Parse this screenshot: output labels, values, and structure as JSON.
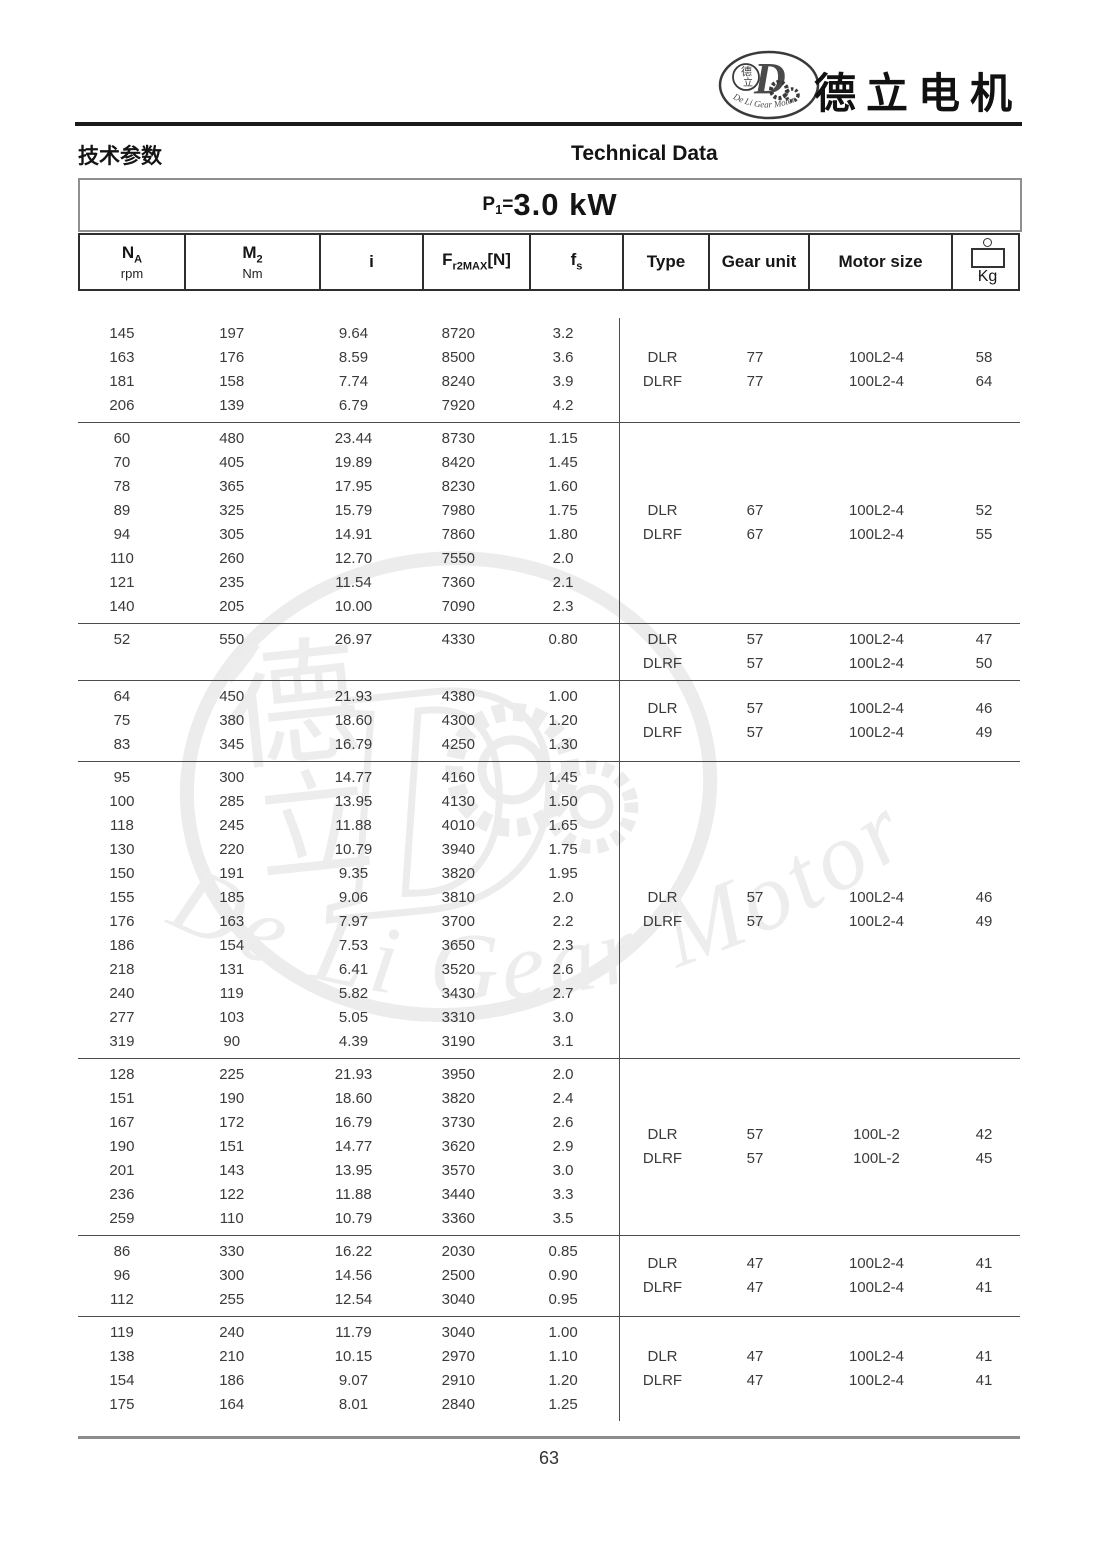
{
  "page": {
    "brand_cn": "德立电机",
    "section_title_cn": "技术参数",
    "section_title_en": "Technical Data",
    "power": {
      "p": "P",
      "sub": "1",
      "eq": "=",
      "value": "3.0 kW"
    },
    "page_number": "63"
  },
  "logo": {
    "letter": "D",
    "char1": "德",
    "char2": "立",
    "script": "De Li Gear Motor"
  },
  "table": {
    "headers": {
      "na": {
        "pre": "N",
        "sub": "A",
        "unit": "rpm"
      },
      "m2": {
        "pre": "M",
        "sub": "2",
        "unit": "Nm"
      },
      "i": {
        "pre": "i"
      },
      "fr": {
        "pre": "F",
        "sub": "r2MAX",
        "post": "[N]"
      },
      "fs": {
        "pre": "f",
        "sub": "s"
      },
      "type": {
        "label": "Type"
      },
      "gear_unit": {
        "label": "Gear unit"
      },
      "motor_size": {
        "label": "Motor size"
      },
      "kg": {
        "unit": "Kg",
        "icon": "weight-icon"
      }
    },
    "groups": [
      {
        "rows": [
          [
            "145",
            "197",
            "9.64",
            "8720",
            "3.2"
          ],
          [
            "163",
            "176",
            "8.59",
            "8500",
            "3.6"
          ],
          [
            "181",
            "158",
            "7.74",
            "8240",
            "3.9"
          ],
          [
            "206",
            "139",
            "6.79",
            "7920",
            "4.2"
          ]
        ],
        "types": [
          [
            "DLR",
            "77",
            "100L2-4",
            "58"
          ],
          [
            "DLRF",
            "77",
            "100L2-4",
            "64"
          ]
        ]
      },
      {
        "rows": [
          [
            "60",
            "480",
            "23.44",
            "8730",
            "1.15"
          ],
          [
            "70",
            "405",
            "19.89",
            "8420",
            "1.45"
          ],
          [
            "78",
            "365",
            "17.95",
            "8230",
            "1.60"
          ],
          [
            "89",
            "325",
            "15.79",
            "7980",
            "1.75"
          ],
          [
            "94",
            "305",
            "14.91",
            "7860",
            "1.80"
          ],
          [
            "110",
            "260",
            "12.70",
            "7550",
            "2.0"
          ],
          [
            "121",
            "235",
            "11.54",
            "7360",
            "2.1"
          ],
          [
            "140",
            "205",
            "10.00",
            "7090",
            "2.3"
          ]
        ],
        "types": [
          [
            "DLR",
            "67",
            "100L2-4",
            "52"
          ],
          [
            "DLRF",
            "67",
            "100L2-4",
            "55"
          ]
        ]
      },
      {
        "rows": [
          [
            "52",
            "550",
            "26.97",
            "4330",
            "0.80"
          ]
        ],
        "types": [
          [
            "DLR",
            "57",
            "100L2-4",
            "47"
          ],
          [
            "DLRF",
            "57",
            "100L2-4",
            "50"
          ]
        ]
      },
      {
        "rows": [
          [
            "64",
            "450",
            "21.93",
            "4380",
            "1.00"
          ],
          [
            "75",
            "380",
            "18.60",
            "4300",
            "1.20"
          ],
          [
            "83",
            "345",
            "16.79",
            "4250",
            "1.30"
          ]
        ],
        "types": [
          [
            "DLR",
            "57",
            "100L2-4",
            "46"
          ],
          [
            "DLRF",
            "57",
            "100L2-4",
            "49"
          ]
        ]
      },
      {
        "rows": [
          [
            "95",
            "300",
            "14.77",
            "4160",
            "1.45"
          ],
          [
            "100",
            "285",
            "13.95",
            "4130",
            "1.50"
          ],
          [
            "118",
            "245",
            "11.88",
            "4010",
            "1.65"
          ],
          [
            "130",
            "220",
            "10.79",
            "3940",
            "1.75"
          ],
          [
            "150",
            "191",
            "9.35",
            "3820",
            "1.95"
          ],
          [
            "155",
            "185",
            "9.06",
            "3810",
            "2.0"
          ],
          [
            "176",
            "163",
            "7.97",
            "3700",
            "2.2"
          ],
          [
            "186",
            "154",
            "7.53",
            "3650",
            "2.3"
          ],
          [
            "218",
            "131",
            "6.41",
            "3520",
            "2.6"
          ],
          [
            "240",
            "119",
            "5.82",
            "3430",
            "2.7"
          ],
          [
            "277",
            "103",
            "5.05",
            "3310",
            "3.0"
          ],
          [
            "319",
            "90",
            "4.39",
            "3190",
            "3.1"
          ]
        ],
        "types": [
          [
            "DLR",
            "57",
            "100L2-4",
            "46"
          ],
          [
            "DLRF",
            "57",
            "100L2-4",
            "49"
          ]
        ]
      },
      {
        "rows": [
          [
            "128",
            "225",
            "21.93",
            "3950",
            "2.0"
          ],
          [
            "151",
            "190",
            "18.60",
            "3820",
            "2.4"
          ],
          [
            "167",
            "172",
            "16.79",
            "3730",
            "2.6"
          ],
          [
            "190",
            "151",
            "14.77",
            "3620",
            "2.9"
          ],
          [
            "201",
            "143",
            "13.95",
            "3570",
            "3.0"
          ],
          [
            "236",
            "122",
            "11.88",
            "3440",
            "3.3"
          ],
          [
            "259",
            "110",
            "10.79",
            "3360",
            "3.5"
          ]
        ],
        "types": [
          [
            "DLR",
            "57",
            "100L-2",
            "42"
          ],
          [
            "DLRF",
            "57",
            "100L-2",
            "45"
          ]
        ]
      },
      {
        "rows": [
          [
            "86",
            "330",
            "16.22",
            "2030",
            "0.85"
          ],
          [
            "96",
            "300",
            "14.56",
            "2500",
            "0.90"
          ],
          [
            "112",
            "255",
            "12.54",
            "3040",
            "0.95"
          ]
        ],
        "types": [
          [
            "DLR",
            "47",
            "100L2-4",
            "41"
          ],
          [
            "DLRF",
            "47",
            "100L2-4",
            "41"
          ]
        ]
      },
      {
        "rows": [
          [
            "119",
            "240",
            "11.79",
            "3040",
            "1.00"
          ],
          [
            "138",
            "210",
            "10.15",
            "2970",
            "1.10"
          ],
          [
            "154",
            "186",
            "9.07",
            "2910",
            "1.20"
          ],
          [
            "175",
            "164",
            "8.01",
            "2840",
            "1.25"
          ]
        ],
        "types": [
          [
            "DLR",
            "47",
            "100L2-4",
            "41"
          ],
          [
            "DLRF",
            "47",
            "100L2-4",
            "41"
          ]
        ]
      }
    ]
  }
}
